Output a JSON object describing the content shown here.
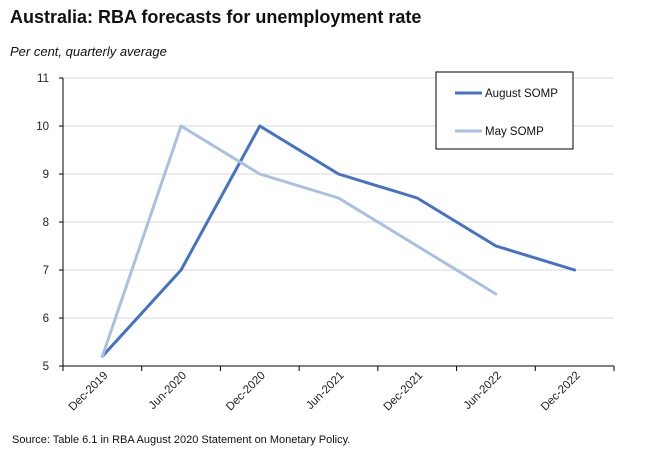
{
  "header": {
    "title": "Australia: RBA forecasts for unemployment rate",
    "subtitle": "Per cent, quarterly average"
  },
  "footer": {
    "source": "Source: Table 6.1 in RBA August 2020 Statement on Monetary Policy."
  },
  "chart_data": {
    "type": "line",
    "title": "Australia: RBA forecasts for unemployment rate",
    "ylabel": "Per cent, quarterly average",
    "categories": [
      "Dec-2019",
      "Jun-2020",
      "Dec-2020",
      "Jun-2021",
      "Dec-2021",
      "Jun-2022",
      "Dec-2022"
    ],
    "ylim": [
      5,
      11
    ],
    "yticks": [
      5,
      6,
      7,
      8,
      9,
      10,
      11
    ],
    "grid": true,
    "legend_position": "top-right",
    "series": [
      {
        "name": "August SOMP",
        "color": "#4472c4",
        "points": [
          {
            "x": 0,
            "y": 5.2
          },
          {
            "x": 1,
            "y": 7.0
          },
          {
            "x": 2,
            "y": 10.0
          },
          {
            "x": 3,
            "y": 9.0
          },
          {
            "x": 4,
            "y": 8.5
          },
          {
            "x": 5,
            "y": 7.5
          },
          {
            "x": 6,
            "y": 7.0
          }
        ]
      },
      {
        "name": "May SOMP",
        "color": "#a9c0e2",
        "points": [
          {
            "x": 0,
            "y": 5.2
          },
          {
            "x": 1,
            "y": 10.0
          },
          {
            "x": 2,
            "y": 9.0
          },
          {
            "x": 3,
            "y": 8.5
          },
          {
            "x": 4,
            "y": 7.5
          },
          {
            "x": 5,
            "y": 6.5
          }
        ]
      }
    ]
  }
}
